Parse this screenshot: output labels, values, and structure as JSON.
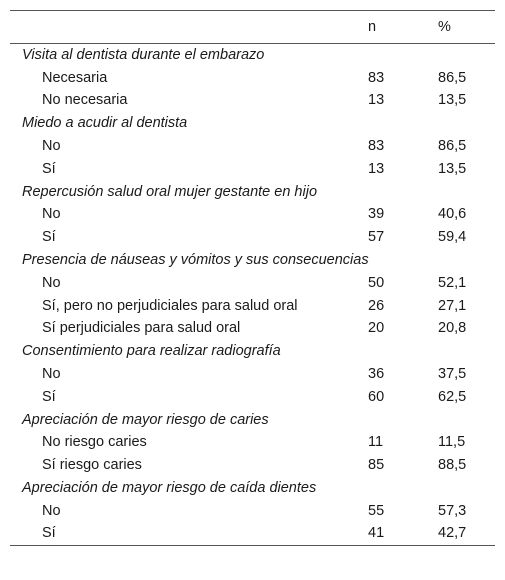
{
  "table": {
    "header": [
      "n",
      "%"
    ],
    "groups": [
      {
        "title": "Visita al dentista durante el embarazo",
        "rows": [
          {
            "label": "Necesaria",
            "n": "83",
            "pct": "86,5"
          },
          {
            "label": "No necesaria",
            "n": "13",
            "pct": "13,5"
          }
        ]
      },
      {
        "title": "Miedo a acudir al dentista",
        "rows": [
          {
            "label": "No",
            "n": "83",
            "pct": "86,5"
          },
          {
            "label": "Sí",
            "n": "13",
            "pct": "13,5"
          }
        ]
      },
      {
        "title": "Repercusión salud oral mujer gestante en hijo",
        "rows": [
          {
            "label": "No",
            "n": "39",
            "pct": "40,6"
          },
          {
            "label": "Sí",
            "n": "57",
            "pct": "59,4"
          }
        ]
      },
      {
        "title": "Presencia de náuseas y vómitos y sus consecuencias",
        "rows": [
          {
            "label": "No",
            "n": "50",
            "pct": "52,1"
          },
          {
            "label": "Sí, pero no perjudiciales para salud oral",
            "n": "26",
            "pct": "27,1"
          },
          {
            "label": "Sí perjudiciales para salud oral",
            "n": "20",
            "pct": "20,8"
          }
        ]
      },
      {
        "title": "Consentimiento para realizar radiografía",
        "rows": [
          {
            "label": "No",
            "n": "36",
            "pct": "37,5"
          },
          {
            "label": "Sí",
            "n": "60",
            "pct": "62,5"
          }
        ]
      },
      {
        "title": "Apreciación de mayor riesgo de caries",
        "rows": [
          {
            "label": "No riesgo caries",
            "n": "11",
            "pct": "11,5"
          },
          {
            "label": "Sí riesgo caries",
            "n": "85",
            "pct": "88,5"
          }
        ]
      },
      {
        "title": "Apreciación de mayor riesgo de caída dientes",
        "rows": [
          {
            "label": "No",
            "n": "55",
            "pct": "57,3"
          },
          {
            "label": "Sí",
            "n": "41",
            "pct": "42,7"
          }
        ]
      }
    ]
  }
}
